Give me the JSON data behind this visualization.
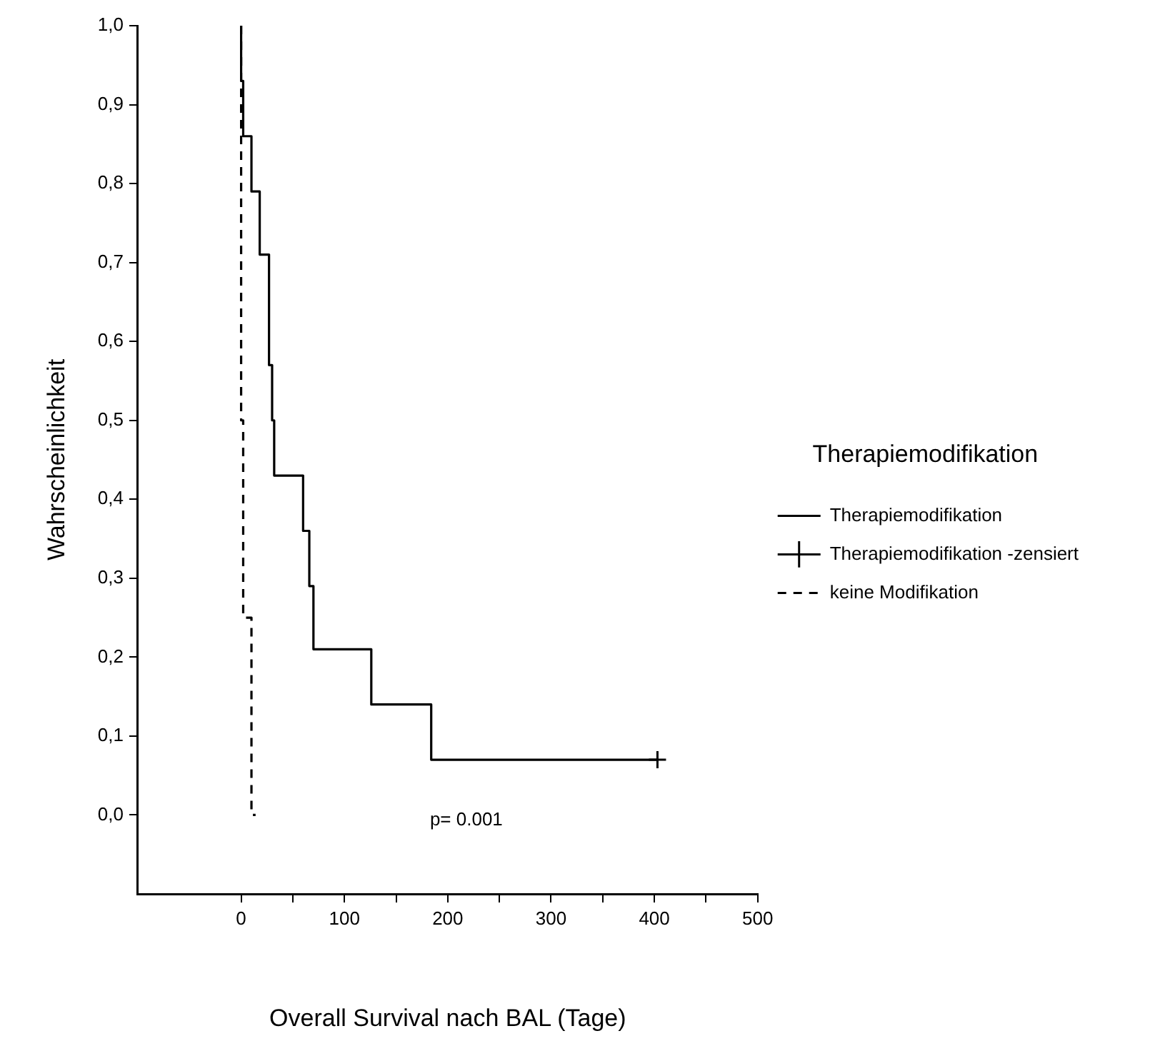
{
  "chart_data": {
    "type": "step",
    "xlabel": "Overall Survival nach BAL (Tage)",
    "ylabel": "Wahrscheinlichkeit",
    "legend_title": "Therapiemodifikation",
    "legend": "right",
    "grid": false,
    "xlim": [
      -100,
      500
    ],
    "xticks": [
      0,
      {
        "value": 50,
        "label": null
      },
      100,
      {
        "value": 150,
        "label": null
      },
      200,
      {
        "value": 250,
        "label": null
      },
      300,
      {
        "value": 350,
        "label": null
      },
      400,
      {
        "value": 450,
        "label": null
      },
      500
    ],
    "ylim": [
      -0.1,
      1.0
    ],
    "yticks": [
      {
        "value": 0,
        "label": "0,0"
      },
      {
        "value": 0.1,
        "label": "0,1"
      },
      {
        "value": 0.2,
        "label": "0,2"
      },
      {
        "value": 0.3,
        "label": "0,3"
      },
      {
        "value": 0.4,
        "label": "0,4"
      },
      {
        "value": 0.5,
        "label": "0,5"
      },
      {
        "value": 0.6,
        "label": "0,6"
      },
      {
        "value": 0.7,
        "label": "0,7"
      },
      {
        "value": 0.8,
        "label": "0,8"
      },
      {
        "value": 0.9,
        "label": "0,9"
      },
      {
        "value": 1.0,
        "label": "1,0"
      }
    ],
    "series": [
      {
        "name": "Therapiemodifikation",
        "color": "#000000",
        "line_style": "solid",
        "marker": "none",
        "x": [
          0,
          2,
          10,
          18,
          27,
          30,
          32,
          60,
          66,
          70,
          126,
          184,
          203,
          403
        ],
        "values": [
          1.0,
          0.93,
          0.86,
          0.79,
          0.71,
          0.57,
          0.5,
          0.43,
          0.36,
          0.29,
          0.21,
          0.14,
          0.07,
          0.07
        ]
      },
      {
        "name": "Therapiemodifikation -zensiert",
        "type": "scatter",
        "color": "#000000",
        "marker": "cross",
        "x": [
          403
        ],
        "values": [
          0.07
        ]
      },
      {
        "name": "keine Modifikation",
        "color": "#000000",
        "line_style": "dashed",
        "marker": "none",
        "x": [
          0,
          2,
          10,
          14
        ],
        "values": [
          1.0,
          0.5,
          0.25,
          0.0
        ]
      }
    ],
    "annotations": [
      "p= 0.001"
    ]
  }
}
